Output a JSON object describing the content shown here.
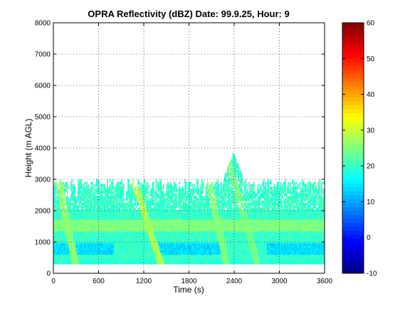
{
  "chart_data": {
    "type": "heatmap",
    "title": "OPRA Reflectivity (dBZ)  Date: 99.9.25, Hour: 9",
    "xlabel": "Time (s)",
    "ylabel": "Height (m AGL)",
    "xlim": [
      0,
      3600
    ],
    "ylim": [
      0,
      8000
    ],
    "xticks": [
      0,
      600,
      1200,
      1800,
      2400,
      3000,
      3600
    ],
    "yticks": [
      0,
      1000,
      2000,
      3000,
      4000,
      5000,
      6000,
      7000,
      8000
    ],
    "grid": true,
    "colorbar": {
      "colormap": "jet",
      "range": [
        -10,
        60
      ],
      "ticks": [
        -10,
        0,
        10,
        20,
        30,
        40,
        50,
        60
      ],
      "tick_labels": [
        "-10",
        "0",
        "10",
        "20",
        "30",
        "40",
        "50",
        "60"
      ]
    },
    "echo_layer": {
      "bottom_m": 300,
      "top_m_typical": 3000,
      "top_m_max": 3800,
      "max_top_time_s": 2380,
      "background_dbz": 20,
      "enhanced_band_dbz": 25,
      "enhanced_band_height_m": [
        1300,
        1700
      ],
      "weak_band_dbz": 14,
      "weak_band_height_m": [
        600,
        900
      ]
    },
    "fall_streaks": [
      {
        "time_top_s": 1050,
        "time_bottom_s": 1420,
        "dbz": 28
      },
      {
        "time_top_s": 60,
        "time_bottom_s": 280,
        "dbz": 26
      },
      {
        "time_top_s": 2050,
        "time_bottom_s": 2290,
        "dbz": 25
      },
      {
        "time_top_s": 2380,
        "time_bottom_s": 2700,
        "dbz": 24
      }
    ]
  }
}
